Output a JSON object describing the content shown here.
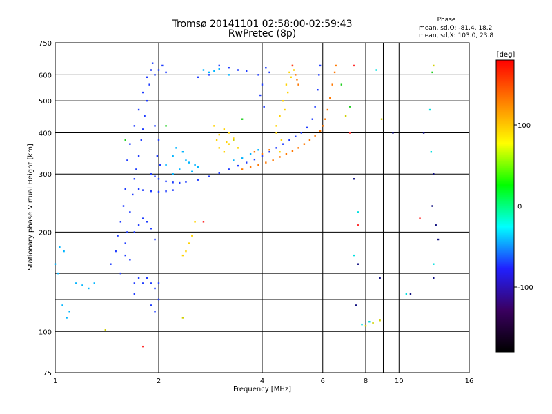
{
  "chart_data": {
    "type": "scatter",
    "title": "Tromsø 20141101 02:58:00-02:59:43",
    "subtitle": "RwPretec (8p)",
    "xlabel": "Frequency [MHz]",
    "ylabel": "Stationary phase Virtual Height [km]",
    "x_scale": "log",
    "y_scale": "log",
    "xlim": [
      1,
      16
    ],
    "ylim": [
      75,
      750
    ],
    "x_ticks": [
      1,
      2,
      4,
      6,
      8,
      10,
      16
    ],
    "x_minor_ticks": [
      9
    ],
    "y_ticks": [
      75,
      100,
      200,
      300,
      400,
      500,
      600,
      750
    ],
    "y_minor_ticks": [
      125,
      150
    ],
    "grid": true,
    "phase_stats": {
      "title": "Phase",
      "line_o": "mean, sd,O: -81.4, 18.2",
      "line_x": "mean, sd,X: 103.0, 23.8"
    },
    "colorbar": {
      "unit": "[deg]",
      "min": -180,
      "max": 180,
      "ticks": [
        100,
        0,
        -100
      ],
      "colormap": [
        "#000000",
        "#3a0060",
        "#2020ff",
        "#00ffff",
        "#00ff00",
        "#ffff00",
        "#ff8000",
        "#ff0000"
      ]
    },
    "series": [
      {
        "color": "#1e3cff",
        "phase": -100,
        "points": [
          [
            1.55,
            150
          ],
          [
            1.6,
            170
          ],
          [
            1.62,
            200
          ],
          [
            1.65,
            230
          ],
          [
            1.68,
            260
          ],
          [
            1.7,
            290
          ],
          [
            1.72,
            310
          ],
          [
            1.75,
            340
          ],
          [
            1.78,
            380
          ],
          [
            1.8,
            410
          ],
          [
            1.82,
            450
          ],
          [
            1.85,
            500
          ],
          [
            1.88,
            560
          ],
          [
            1.9,
            620
          ],
          [
            1.92,
            650
          ],
          [
            1.95,
            600
          ],
          [
            2.0,
            620
          ],
          [
            2.05,
            640
          ],
          [
            2.1,
            610
          ],
          [
            1.7,
            140
          ],
          [
            1.75,
            145
          ],
          [
            1.8,
            140
          ],
          [
            1.85,
            145
          ],
          [
            1.9,
            140
          ],
          [
            1.95,
            135
          ],
          [
            2.0,
            140
          ],
          [
            1.9,
            120
          ],
          [
            1.95,
            115
          ],
          [
            2.0,
            125
          ],
          [
            1.7,
            130
          ],
          [
            1.65,
            165
          ],
          [
            1.6,
            185
          ],
          [
            1.58,
            240
          ],
          [
            1.6,
            270
          ],
          [
            1.62,
            330
          ],
          [
            1.65,
            370
          ],
          [
            1.7,
            420
          ],
          [
            1.75,
            470
          ],
          [
            1.8,
            530
          ],
          [
            1.85,
            590
          ],
          [
            1.9,
            300
          ],
          [
            1.95,
            295
          ],
          [
            2.0,
            290
          ],
          [
            2.1,
            285
          ],
          [
            2.2,
            283
          ],
          [
            2.3,
            282
          ],
          [
            2.4,
            284
          ],
          [
            2.6,
            288
          ],
          [
            2.8,
            295
          ],
          [
            3.0,
            302
          ],
          [
            3.2,
            310
          ],
          [
            3.4,
            318
          ],
          [
            3.6,
            325
          ],
          [
            3.8,
            332
          ],
          [
            4.0,
            340
          ],
          [
            4.2,
            350
          ],
          [
            4.4,
            360
          ],
          [
            4.6,
            370
          ],
          [
            4.8,
            380
          ],
          [
            5.0,
            390
          ],
          [
            5.2,
            400
          ],
          [
            5.4,
            415
          ],
          [
            5.6,
            440
          ],
          [
            5.7,
            480
          ],
          [
            5.8,
            540
          ],
          [
            5.85,
            600
          ],
          [
            5.9,
            640
          ],
          [
            1.75,
            270
          ],
          [
            1.8,
            268
          ],
          [
            1.9,
            266
          ],
          [
            2.0,
            265
          ],
          [
            2.1,
            266
          ],
          [
            2.2,
            268
          ],
          [
            1.7,
            200
          ],
          [
            1.75,
            210
          ],
          [
            1.8,
            220
          ],
          [
            1.85,
            215
          ],
          [
            1.9,
            205
          ],
          [
            1.95,
            190
          ],
          [
            1.45,
            160
          ],
          [
            1.5,
            175
          ],
          [
            1.52,
            195
          ],
          [
            1.55,
            215
          ],
          [
            3.9,
            600
          ],
          [
            4.0,
            560
          ],
          [
            3.95,
            520
          ],
          [
            4.05,
            480
          ],
          [
            4.1,
            630
          ],
          [
            4.2,
            610
          ],
          [
            3.0,
            640
          ],
          [
            3.2,
            630
          ],
          [
            3.4,
            620
          ],
          [
            3.6,
            615
          ],
          [
            2.6,
            590
          ],
          [
            2.8,
            600
          ],
          [
            1.95,
            420
          ],
          [
            2.0,
            380
          ],
          [
            1.98,
            340
          ],
          [
            2.02,
            320
          ]
        ]
      },
      {
        "color": "#00b4ff",
        "phase": -40,
        "points": [
          [
            1.0,
            160
          ],
          [
            1.02,
            150
          ],
          [
            1.05,
            120
          ],
          [
            1.08,
            110
          ],
          [
            1.1,
            115
          ],
          [
            1.15,
            140
          ],
          [
            1.2,
            138
          ],
          [
            1.25,
            135
          ],
          [
            1.3,
            140
          ],
          [
            1.03,
            180
          ],
          [
            1.06,
            175
          ],
          [
            2.1,
            320
          ],
          [
            2.2,
            300
          ],
          [
            2.3,
            310
          ],
          [
            2.4,
            330
          ],
          [
            2.5,
            305
          ],
          [
            2.6,
            315
          ],
          [
            2.7,
            620
          ],
          [
            2.8,
            610
          ],
          [
            2.9,
            615
          ],
          [
            3.0,
            625
          ],
          [
            3.2,
            600
          ],
          [
            3.3,
            330
          ],
          [
            3.5,
            335
          ],
          [
            3.7,
            345
          ],
          [
            3.9,
            355
          ],
          [
            2.2,
            340
          ],
          [
            2.25,
            360
          ],
          [
            2.35,
            350
          ],
          [
            2.45,
            325
          ],
          [
            2.55,
            320
          ]
        ]
      },
      {
        "color": "#ffd200",
        "phase": 100,
        "points": [
          [
            2.9,
            420
          ],
          [
            2.95,
            380
          ],
          [
            3.0,
            360
          ],
          [
            3.1,
            350
          ],
          [
            3.2,
            370
          ],
          [
            3.3,
            385
          ],
          [
            3.4,
            360
          ],
          [
            3.1,
            410
          ],
          [
            3.2,
            400
          ],
          [
            3.0,
            395
          ],
          [
            3.15,
            375
          ],
          [
            2.35,
            170
          ],
          [
            2.4,
            175
          ],
          [
            2.45,
            185
          ],
          [
            2.5,
            195
          ],
          [
            2.55,
            215
          ],
          [
            4.4,
            420
          ],
          [
            4.5,
            450
          ],
          [
            4.6,
            500
          ],
          [
            4.7,
            560
          ],
          [
            4.8,
            610
          ],
          [
            4.9,
            640
          ],
          [
            4.55,
            380
          ],
          [
            4.65,
            470
          ],
          [
            4.75,
            530
          ],
          [
            4.85,
            590
          ],
          [
            4.95,
            620
          ],
          [
            4.5,
            350
          ],
          [
            4.4,
            400
          ]
        ]
      },
      {
        "color": "#ff7800",
        "phase": 150,
        "points": [
          [
            3.5,
            310
          ],
          [
            3.7,
            315
          ],
          [
            3.9,
            320
          ],
          [
            4.1,
            325
          ],
          [
            4.3,
            330
          ],
          [
            4.5,
            338
          ],
          [
            4.7,
            345
          ],
          [
            4.9,
            352
          ],
          [
            5.1,
            360
          ],
          [
            5.3,
            370
          ],
          [
            5.5,
            380
          ],
          [
            5.7,
            392
          ],
          [
            5.9,
            405
          ],
          [
            6.0,
            420
          ],
          [
            6.1,
            440
          ],
          [
            6.2,
            470
          ],
          [
            6.3,
            510
          ],
          [
            6.4,
            560
          ],
          [
            6.5,
            610
          ],
          [
            6.55,
            640
          ],
          [
            5.0,
            600
          ],
          [
            5.05,
            580
          ],
          [
            5.1,
            560
          ],
          [
            3.8,
            350
          ],
          [
            4.0,
            345
          ],
          [
            4.2,
            355
          ]
        ]
      },
      {
        "color": "#20d020",
        "phase": 20,
        "points": [
          [
            1.6,
            380
          ],
          [
            2.1,
            420
          ],
          [
            3.5,
            440
          ],
          [
            7.2,
            480
          ],
          [
            6.8,
            560
          ],
          [
            12.5,
            610
          ]
        ]
      },
      {
        "color": "#ff3030",
        "phase": 170,
        "points": [
          [
            2.7,
            215
          ],
          [
            4.9,
            640
          ],
          [
            7.6,
            210
          ],
          [
            11.5,
            220
          ],
          [
            7.2,
            400
          ],
          [
            7.4,
            640
          ],
          [
            1.8,
            90
          ]
        ]
      },
      {
        "color": "#101080",
        "phase": -130,
        "points": [
          [
            7.5,
            120
          ],
          [
            7.6,
            160
          ],
          [
            8.8,
            145
          ],
          [
            10.8,
            130
          ],
          [
            13.0,
            190
          ],
          [
            12.8,
            210
          ],
          [
            9.6,
            400
          ],
          [
            11.8,
            400
          ],
          [
            12.6,
            300
          ],
          [
            12.5,
            240
          ],
          [
            7.4,
            290
          ],
          [
            12.6,
            145
          ]
        ]
      },
      {
        "color": "#00e0e0",
        "phase": -20,
        "points": [
          [
            7.4,
            170
          ],
          [
            7.6,
            230
          ],
          [
            8.6,
            620
          ],
          [
            12.3,
            470
          ],
          [
            12.4,
            350
          ],
          [
            10.5,
            130
          ],
          [
            7.8,
            105
          ],
          [
            8.2,
            107
          ],
          [
            12.6,
            160
          ]
        ]
      },
      {
        "color": "#d0d000",
        "phase": 90,
        "points": [
          [
            8.0,
            104
          ],
          [
            8.4,
            106
          ],
          [
            8.8,
            108
          ],
          [
            8.9,
            440
          ],
          [
            7.0,
            450
          ],
          [
            12.6,
            640
          ],
          [
            1.4,
            101
          ],
          [
            2.35,
            110
          ],
          [
            3.3,
            380
          ]
        ]
      }
    ]
  }
}
